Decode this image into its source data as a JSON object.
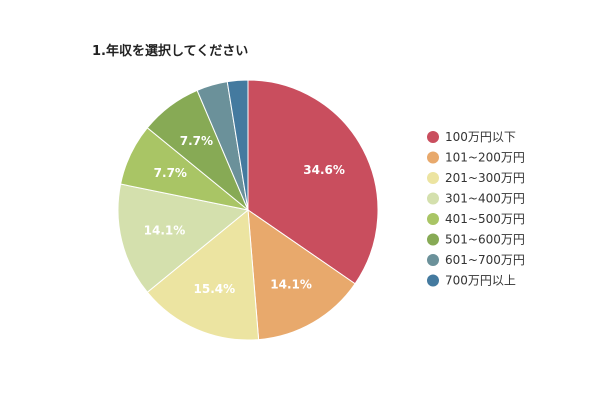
{
  "chart_data": {
    "type": "pie",
    "title": "1.年収を選択してください",
    "categories": [
      "100万円以下",
      "101~200万円",
      "201~300万円",
      "301~400万円",
      "401~500万円",
      "501~600万円",
      "601~700万円",
      "700万円以上"
    ],
    "values": [
      34.6,
      14.1,
      15.4,
      14.1,
      7.7,
      7.7,
      3.85,
      2.55
    ],
    "labels": [
      "34.6%",
      "14.1%",
      "15.4%",
      "14.1%",
      "7.7%",
      "7.7%",
      "",
      ""
    ],
    "colors": [
      "#c94e5e",
      "#e8a96c",
      "#ece4a1",
      "#d4e0ad",
      "#a9c565",
      "#87aa55",
      "#6b919a",
      "#447a9f"
    ],
    "legend_position": "right",
    "start_angle": "top",
    "direction": "clockwise"
  }
}
